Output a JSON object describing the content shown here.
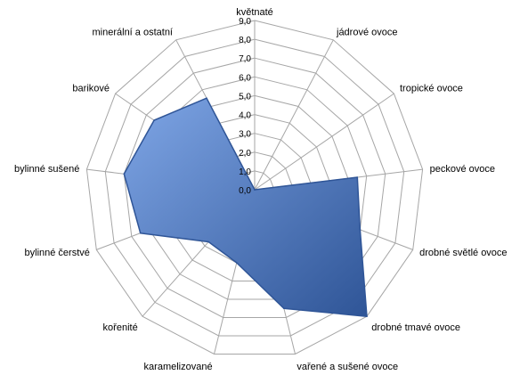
{
  "chart_data": {
    "type": "radar",
    "categories": [
      "květnaté",
      "jádrové ovoce",
      "tropické ovoce",
      "peckové ovoce",
      "drobné světlé ovoce",
      "drobné tmavé ovoce",
      "vařené a sušené ovoce",
      "karamelizované",
      "kořenité",
      "bylinné čerstvé",
      "bylinné sušené",
      "barikové",
      "minerální a ostatní"
    ],
    "series": [
      {
        "values": [
          0.0,
          0.0,
          0.0,
          5.5,
          6.0,
          9.0,
          6.5,
          4.0,
          3.7,
          6.5,
          7.0,
          6.5,
          5.5
        ]
      }
    ],
    "rlim": [
      0,
      9
    ],
    "ticks": [
      "0,0",
      "1,0",
      "2,0",
      "3,0",
      "4,0",
      "5,0",
      "6,0",
      "7,0",
      "8,0",
      "9,0"
    ],
    "grid": true,
    "colors": {
      "fill": "#4472C4",
      "fill_dark": "#2F5597",
      "fill_light": "#7FA6E6",
      "grid": "#A6A6A6"
    }
  }
}
